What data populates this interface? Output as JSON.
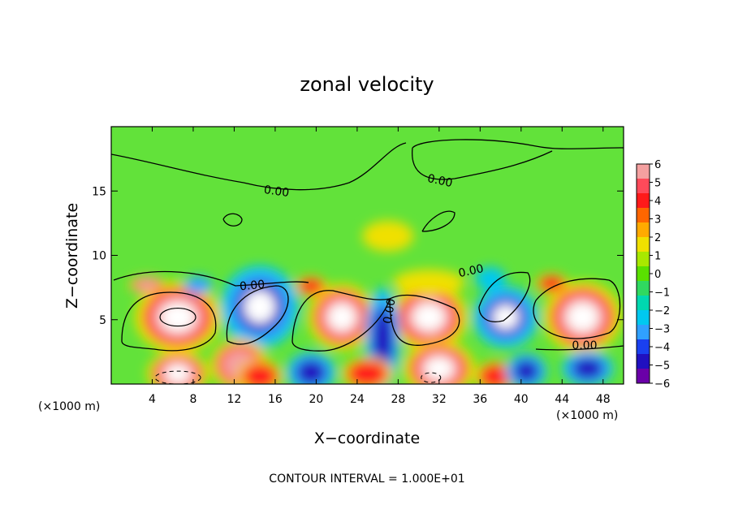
{
  "chart_data": {
    "type": "heatmap",
    "title": "zonal velocity",
    "xlabel": "X−coordinate",
    "ylabel": "Z−coordinate",
    "x_unit_left": "(×1000 m)",
    "x_unit_right": "(×1000 m)",
    "xlim": [
      0,
      50
    ],
    "ylim": [
      0,
      20
    ],
    "xticks": [
      4,
      8,
      12,
      16,
      20,
      24,
      28,
      32,
      36,
      40,
      44,
      48
    ],
    "yticks": [
      5,
      10,
      15
    ],
    "grid": false,
    "colorbar": {
      "ticks": [
        "6",
        "5",
        "4",
        "3",
        "2",
        "1",
        "0",
        "−1",
        "−2",
        "−3",
        "−4",
        "−5",
        "−6"
      ],
      "range": [
        -6,
        6
      ],
      "colors": [
        "#f4a0a0",
        "#ff4a5a",
        "#ff1a1a",
        "#ff6600",
        "#ffaa00",
        "#f0e000",
        "#a8e800",
        "#5ae000",
        "#30d860",
        "#00d8b0",
        "#00c8f0",
        "#30a0ff",
        "#1a40f0",
        "#2010c0",
        "#6a00a8"
      ]
    },
    "contour_labels": [
      "0.00",
      "0.00",
      "0.00",
      "0.00",
      "0.00",
      "0.00"
    ],
    "contour_interval": "CONTOUR INTERVAL = 1.000E+01",
    "anomalies": [
      {
        "x": 6.5,
        "z": 5.2,
        "rx": 4.2,
        "rz": 2.8,
        "v": 7
      },
      {
        "x": 14.5,
        "z": 6.0,
        "rx": 3.8,
        "rz": 3.2,
        "v": -7
      },
      {
        "x": 22.5,
        "z": 5.2,
        "rx": 3.3,
        "rz": 2.6,
        "v": 7
      },
      {
        "x": 31.0,
        "z": 5.2,
        "rx": 3.8,
        "rz": 2.6,
        "v": 7
      },
      {
        "x": 38.5,
        "z": 5.2,
        "rx": 3.2,
        "rz": 2.4,
        "v": -7
      },
      {
        "x": 46.0,
        "z": 5.2,
        "rx": 3.8,
        "rz": 2.8,
        "v": 7
      },
      {
        "x": 26.5,
        "z": 3.5,
        "rx": 1.7,
        "rz": 4.0,
        "v": -6
      },
      {
        "x": 6.5,
        "z": 0.8,
        "rx": 3.0,
        "rz": 1.8,
        "v": 7
      },
      {
        "x": 12.5,
        "z": 1.5,
        "rx": 2.8,
        "rz": 2.0,
        "v": 5.5
      },
      {
        "x": 14.5,
        "z": 0.6,
        "rx": 2.2,
        "rz": 1.3,
        "v": 4
      },
      {
        "x": 19.5,
        "z": 0.9,
        "rx": 2.4,
        "rz": 1.6,
        "v": -6
      },
      {
        "x": 25.0,
        "z": 0.8,
        "rx": 2.5,
        "rz": 1.3,
        "v": 5
      },
      {
        "x": 32.0,
        "z": 1.2,
        "rx": 3.5,
        "rz": 2.2,
        "v": 7
      },
      {
        "x": 37.5,
        "z": 0.6,
        "rx": 2.0,
        "rz": 1.2,
        "v": 5
      },
      {
        "x": 40.5,
        "z": 1.0,
        "rx": 2.0,
        "rz": 1.4,
        "v": -5
      },
      {
        "x": 46.5,
        "z": 1.2,
        "rx": 2.5,
        "rz": 1.4,
        "v": -6
      },
      {
        "x": 3.5,
        "z": 7.7,
        "rx": 1.8,
        "rz": 0.7,
        "v": 6
      },
      {
        "x": 8.5,
        "z": 7.7,
        "rx": 1.4,
        "rz": 0.7,
        "v": -4
      },
      {
        "x": 19.5,
        "z": 7.6,
        "rx": 1.6,
        "rz": 0.8,
        "v": 4
      },
      {
        "x": 31.0,
        "z": 7.9,
        "rx": 3.5,
        "rz": 1.0,
        "v": 3
      },
      {
        "x": 37.0,
        "z": 8.2,
        "rx": 1.5,
        "rz": 0.9,
        "v": -2
      },
      {
        "x": 43.0,
        "z": 7.8,
        "rx": 1.6,
        "rz": 0.8,
        "v": 5
      },
      {
        "x": 27.0,
        "z": 11.5,
        "rx": 2.5,
        "rz": 1.2,
        "v": 2
      },
      {
        "x": 17.0,
        "z": 12.5,
        "rx": 4.0,
        "rz": 2.0,
        "v": 1.2
      },
      {
        "x": 40.0,
        "z": 12.0,
        "rx": 4.0,
        "rz": 2.0,
        "v": 0.8
      },
      {
        "x": 33.0,
        "z": 18.5,
        "rx": 5.0,
        "rz": 1.8,
        "v": -1.3
      },
      {
        "x": 43.0,
        "z": 18.8,
        "rx": 5.0,
        "rz": 1.5,
        "v": -1.0
      },
      {
        "x": 6.0,
        "z": 19.0,
        "rx": 6.0,
        "rz": 1.3,
        "v": -0.5
      }
    ]
  }
}
